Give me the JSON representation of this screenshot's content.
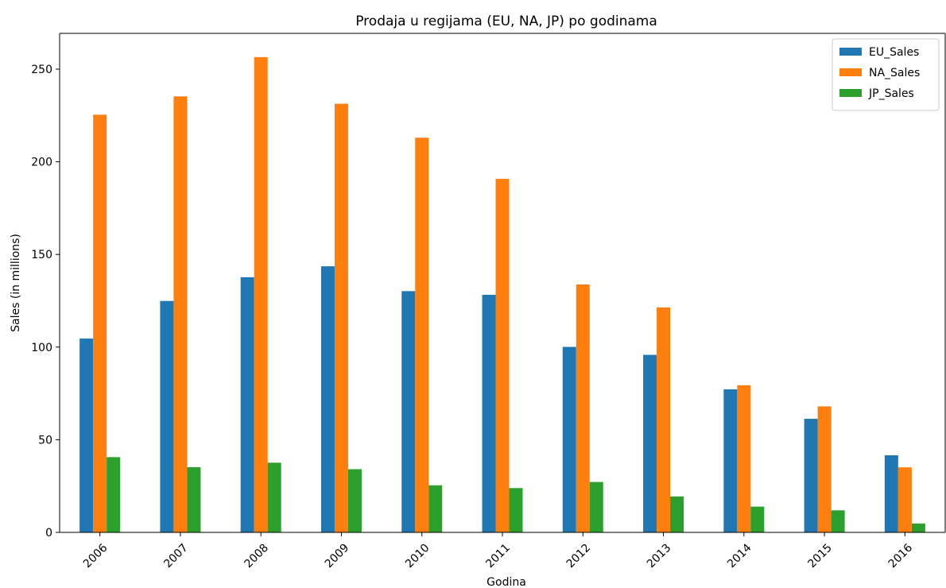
{
  "chart_data": {
    "type": "bar",
    "title": "Prodaja u regijama (EU, NA, JP) po godinama",
    "xlabel": "Godina",
    "ylabel": "Sales (in millions)",
    "categories": [
      "2006",
      "2007",
      "2008",
      "2009",
      "2010",
      "2011",
      "2012",
      "2013",
      "2014",
      "2015",
      "2016"
    ],
    "series": [
      {
        "name": "EU_Sales",
        "color": "#1f77b4",
        "values": [
          104.6,
          124.9,
          137.7,
          143.6,
          130.2,
          128.2,
          100.1,
          95.8,
          77.2,
          61.3,
          41.6
        ]
      },
      {
        "name": "NA_Sales",
        "color": "#ff7f0e",
        "values": [
          225.4,
          235.3,
          256.5,
          231.3,
          213.0,
          190.8,
          133.8,
          121.4,
          79.4,
          68.0,
          35.1
        ]
      },
      {
        "name": "JP_Sales",
        "color": "#2ca02c",
        "values": [
          40.6,
          35.2,
          37.6,
          34.1,
          25.4,
          23.9,
          27.2,
          19.4,
          13.9,
          11.9,
          4.8
        ]
      }
    ],
    "yticks": [
      0,
      50,
      100,
      150,
      200,
      250
    ],
    "ylim": [
      0,
      269.3
    ],
    "grid": false,
    "legend_position": "top-right"
  }
}
